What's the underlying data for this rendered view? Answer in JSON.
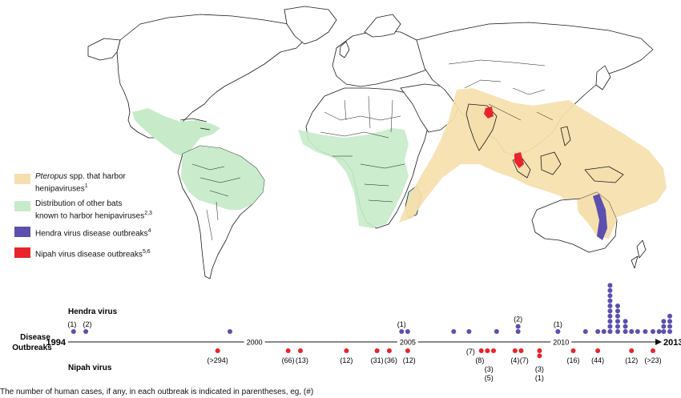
{
  "legend": {
    "items": [
      {
        "label_italic": "Pteropus",
        "label_rest": " spp. that harbor",
        "label_line2": "henipaviruses",
        "ref": "1",
        "color": "#f5dfad"
      },
      {
        "label_line1": "Distribution of other bats",
        "label_line2": "known to harbor henipaviruses",
        "ref": "2,3",
        "color": "#c7ebc9"
      },
      {
        "label": "Hendra virus disease outbreaks",
        "ref": "4",
        "color": "#5b4fb0"
      },
      {
        "label": "Nipah virus disease outbreaks",
        "ref": "5,6",
        "color": "#e8242a"
      }
    ]
  },
  "timeline": {
    "row_label_hendra": "Hendra virus",
    "row_label_nipah": "Nipah virus",
    "axis_label_line1": "Disease",
    "axis_label_line2": "Outbreaks",
    "start_year": "1994",
    "end_year": "2013",
    "tick_labels": [
      "2000",
      "2005",
      "2010"
    ],
    "hendra_color": "#5b4fb0",
    "nipah_color": "#e8242a",
    "hendra_dots": [
      {
        "year": 1994.1,
        "count": 1
      },
      {
        "year": 1994.5,
        "count": 1
      },
      {
        "year": 1999.2,
        "count": 1
      },
      {
        "year": 2004.8,
        "count": 1
      },
      {
        "year": 2005.0,
        "count": 1
      },
      {
        "year": 2006.5,
        "count": 1
      },
      {
        "year": 2007.0,
        "count": 1
      },
      {
        "year": 2007.9,
        "count": 1
      },
      {
        "year": 2008.6,
        "count": 2
      },
      {
        "year": 2009.9,
        "count": 1
      },
      {
        "year": 2010.8,
        "count": 1
      },
      {
        "year": 2011.2,
        "count": 1
      },
      {
        "year": 2011.4,
        "count": 1
      },
      {
        "year": 2011.6,
        "count": 10
      },
      {
        "year": 2011.85,
        "count": 6
      },
      {
        "year": 2012.1,
        "count": 3
      },
      {
        "year": 2012.3,
        "count": 1
      },
      {
        "year": 2012.5,
        "count": 1
      },
      {
        "year": 2012.75,
        "count": 1
      },
      {
        "year": 2013.0,
        "count": 1
      },
      {
        "year": 2013.2,
        "count": 1
      },
      {
        "year": 2013.35,
        "count": 3
      },
      {
        "year": 2013.55,
        "count": 4
      }
    ],
    "hendra_labels": [
      {
        "year": 1994.05,
        "text": "(1)"
      },
      {
        "year": 1994.55,
        "text": "(2)"
      },
      {
        "year": 2004.8,
        "text": "(1)"
      },
      {
        "year": 2008.6,
        "text": "(2)"
      },
      {
        "year": 2009.9,
        "text": "(1)"
      }
    ],
    "nipah_dots": [
      {
        "year": 1998.8,
        "count": 1
      },
      {
        "year": 2001.1,
        "count": 1
      },
      {
        "year": 2001.5,
        "count": 1
      },
      {
        "year": 2003.0,
        "count": 1
      },
      {
        "year": 2004.0,
        "count": 1
      },
      {
        "year": 2004.4,
        "count": 1
      },
      {
        "year": 2005.0,
        "count": 1
      },
      {
        "year": 2007.4,
        "count": 1
      },
      {
        "year": 2007.6,
        "count": 1
      },
      {
        "year": 2007.8,
        "count": 1
      },
      {
        "year": 2008.5,
        "count": 1
      },
      {
        "year": 2008.7,
        "count": 1
      },
      {
        "year": 2009.3,
        "count": 2
      },
      {
        "year": 2010.4,
        "count": 1
      },
      {
        "year": 2011.2,
        "count": 1
      },
      {
        "year": 2012.3,
        "count": 1
      },
      {
        "year": 2013.0,
        "count": 1
      }
    ],
    "nipah_labels": [
      {
        "year": 1998.8,
        "row": 0,
        "text": "(>294)"
      },
      {
        "year": 2001.1,
        "row": 0,
        "text": "(66)"
      },
      {
        "year": 2001.55,
        "row": 0,
        "text": "(13)"
      },
      {
        "year": 2003.0,
        "row": 0,
        "text": "(12)"
      },
      {
        "year": 2004.0,
        "row": 0,
        "text": "(31)"
      },
      {
        "year": 2004.45,
        "row": 0,
        "text": "(36)"
      },
      {
        "year": 2005.05,
        "row": 0,
        "text": "(12)"
      },
      {
        "year": 2007.05,
        "row": -1,
        "text": "(7)"
      },
      {
        "year": 2007.35,
        "row": 0,
        "text": "(8)"
      },
      {
        "year": 2007.65,
        "row": 1,
        "text": "(3)"
      },
      {
        "year": 2007.65,
        "row": 2,
        "text": "(5)"
      },
      {
        "year": 2008.5,
        "row": 0,
        "text": "(4)"
      },
      {
        "year": 2008.8,
        "row": 0,
        "text": "(7)"
      },
      {
        "year": 2009.3,
        "row": 1,
        "text": "(3)"
      },
      {
        "year": 2009.3,
        "row": 2,
        "text": "(1)"
      },
      {
        "year": 2010.4,
        "row": 0,
        "text": "(16)"
      },
      {
        "year": 2011.2,
        "row": 0,
        "text": "(44)"
      },
      {
        "year": 2012.3,
        "row": 0,
        "text": "(12)"
      },
      {
        "year": 2013.0,
        "row": 0,
        "text": "(>23)"
      }
    ]
  },
  "footnote": "The number of human cases, if any, in each outbreak is indicated in parentheses, eg, (#)"
}
